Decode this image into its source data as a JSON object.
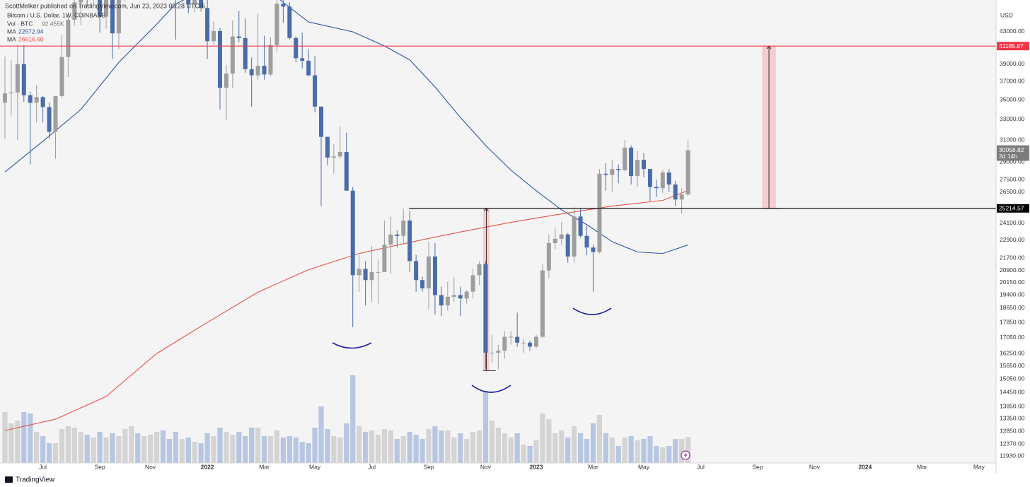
{
  "header": "ScottMelker published on TradingView.com, Jun 23, 2023 05:28 UTC-5",
  "footer": "TradingView",
  "chart_data": {
    "type": "candlestick",
    "symbol": "Bitcoin / U.S. Dollar, 1W, COINBASE",
    "currency": "USD",
    "log_scale": true,
    "grid": false,
    "up_color": "#9e9e9e",
    "down_color": "#4a6ca8",
    "volume_up_color": "#d4d4d4",
    "volume_down_color": "#b7c6e2",
    "volume_name": "Vol · BTC",
    "volume_label": "92.455K",
    "countdown": "2d 14h",
    "xlim": [
      -0.78,
      156.7
    ],
    "xticks": [
      {
        "value": 6,
        "label": "Jul"
      },
      {
        "value": 15,
        "label": "Sep"
      },
      {
        "value": 23,
        "label": "Nov"
      },
      {
        "value": 32,
        "label": "2022"
      },
      {
        "value": 41,
        "label": "Mar"
      },
      {
        "value": 49,
        "label": "May"
      },
      {
        "value": 58,
        "label": "Jul"
      },
      {
        "value": 67,
        "label": "Sep"
      },
      {
        "value": 76,
        "label": "Nov"
      },
      {
        "value": 84,
        "label": "2023"
      },
      {
        "value": 93,
        "label": "Mar"
      },
      {
        "value": 101,
        "label": "May"
      },
      {
        "value": 110,
        "label": "Jul"
      },
      {
        "value": 119,
        "label": "Sep"
      },
      {
        "value": 128,
        "label": "Nov"
      },
      {
        "value": 136,
        "label": "2024"
      },
      {
        "value": 145,
        "label": "Mar"
      },
      {
        "value": 154,
        "label": "May"
      }
    ],
    "ylim": [
      11678,
      47340
    ],
    "yticks": [
      {
        "value": 43000,
        "label": "43000.00"
      },
      {
        "value": 39000,
        "label": "39000.00"
      },
      {
        "value": 37000,
        "label": "37000.00"
      },
      {
        "value": 35000,
        "label": "35000.00"
      },
      {
        "value": 33000,
        "label": "33000.00"
      },
      {
        "value": 31000,
        "label": "31000.00"
      },
      {
        "value": 29000,
        "label": "29000.00"
      },
      {
        "value": 27500,
        "label": "27500.00"
      },
      {
        "value": 26500,
        "label": "26500.00"
      },
      {
        "value": 24100,
        "label": "24100.00"
      },
      {
        "value": 22900,
        "label": "22900.00"
      },
      {
        "value": 21700,
        "label": "21700.00"
      },
      {
        "value": 20900,
        "label": "20900.00"
      },
      {
        "value": 20150,
        "label": "20150.00"
      },
      {
        "value": 19400,
        "label": "19400.00"
      },
      {
        "value": 18650,
        "label": "18650.00"
      },
      {
        "value": 17850,
        "label": "17850.00"
      },
      {
        "value": 17050,
        "label": "17050.00"
      },
      {
        "value": 16250,
        "label": "16250.00"
      },
      {
        "value": 15650,
        "label": "15650.00"
      },
      {
        "value": 15050,
        "label": "15050.00"
      },
      {
        "value": 14450,
        "label": "14450.00"
      },
      {
        "value": 13850,
        "label": "13850.00"
      },
      {
        "value": 13350,
        "label": "13350.00"
      },
      {
        "value": 12850,
        "label": "12850.00"
      },
      {
        "value": 12370,
        "label": "12370.00"
      },
      {
        "value": 11930,
        "label": "11930.00"
      }
    ],
    "volume_ylim": [
      0,
      400000
    ],
    "x": [
      0,
      1,
      2,
      3,
      4,
      5,
      6,
      7,
      8,
      9,
      10,
      11,
      12,
      13,
      14,
      15,
      16,
      17,
      18,
      19,
      20,
      21,
      22,
      23,
      24,
      25,
      26,
      27,
      28,
      29,
      30,
      31,
      32,
      33,
      34,
      35,
      36,
      37,
      38,
      39,
      40,
      41,
      42,
      43,
      44,
      45,
      46,
      47,
      48,
      49,
      50,
      51,
      52,
      53,
      54,
      55,
      56,
      57,
      58,
      59,
      60,
      61,
      62,
      63,
      64,
      65,
      66,
      67,
      68,
      69,
      70,
      71,
      72,
      73,
      74,
      75,
      76,
      77,
      78,
      79,
      80,
      81,
      82,
      83,
      84,
      85,
      86,
      87,
      88,
      89,
      90,
      91,
      92,
      93,
      94,
      95,
      96,
      97,
      98,
      99,
      100,
      101,
      102,
      103,
      104,
      105,
      106,
      107,
      108
    ],
    "open": [
      34700,
      35700,
      35800,
      39000,
      35500,
      34700,
      35300,
      34250,
      31780,
      35400,
      39850,
      44600,
      47000,
      49300,
      48900,
      51800,
      45000,
      48300,
      42800,
      48200,
      55000,
      61500,
      61300,
      61800,
      63200,
      65500,
      58600,
      57300,
      49400,
      50100,
      46700,
      50800,
      46200,
      41800,
      43100,
      36300,
      37900,
      42400,
      42200,
      38400,
      37700,
      38800,
      37800,
      41300,
      46800,
      46400,
      42200,
      39700,
      39400,
      37700,
      34300,
      31300,
      29400,
      29500,
      29900,
      26600,
      20600,
      21000,
      20300,
      20800,
      20800,
      22600,
      23300,
      23200,
      24300,
      21500,
      20300,
      19800,
      21800,
      19400,
      18800,
      19300,
      19400,
      19200,
      19600,
      20600,
      21300,
      16300,
      16300,
      16400,
      17100,
      17100,
      16800,
      16800,
      16600,
      17100,
      20900,
      22700,
      23000,
      23300,
      21800,
      24600,
      23200,
      22400,
      22100,
      28000,
      27900,
      28400,
      28300,
      30300,
      27800,
      29200,
      28400,
      26900,
      26800,
      28100,
      27100,
      25900,
      26300
    ],
    "high": [
      39900,
      39500,
      41300,
      41300,
      35900,
      36600,
      35400,
      34700,
      35400,
      42600,
      45300,
      48100,
      50500,
      50000,
      52900,
      52900,
      48800,
      48300,
      48500,
      56500,
      62000,
      67000,
      63000,
      64300,
      69000,
      66300,
      59300,
      59200,
      51900,
      50600,
      51900,
      52000,
      47500,
      44400,
      43500,
      38900,
      44500,
      45800,
      44800,
      39800,
      45400,
      42500,
      42300,
      47500,
      48200,
      47000,
      42400,
      42900,
      40800,
      40000,
      34300,
      31300,
      30600,
      32300,
      31700,
      26900,
      21900,
      21500,
      22500,
      21600,
      24300,
      24600,
      23600,
      25200,
      25000,
      21900,
      20500,
      22800,
      22700,
      19900,
      20200,
      20500,
      19900,
      19700,
      21000,
      21500,
      21500,
      17200,
      16700,
      17400,
      17400,
      18400,
      17000,
      16900,
      17200,
      21300,
      23300,
      23800,
      24200,
      23400,
      25300,
      25200,
      23900,
      22600,
      28400,
      28900,
      29200,
      28800,
      31000,
      30500,
      30000,
      29800,
      28400,
      27500,
      28300,
      28400,
      27400,
      26800,
      31000
    ],
    "low": [
      31100,
      33400,
      31000,
      34800,
      28800,
      32700,
      32700,
      31100,
      29300,
      35200,
      37500,
      43800,
      43900,
      46400,
      46600,
      42900,
      43400,
      39600,
      40800,
      47200,
      53900,
      59600,
      57800,
      59400,
      62300,
      55600,
      53600,
      42000,
      46800,
      45500,
      45600,
      45700,
      39600,
      41300,
      34000,
      32900,
      36300,
      41700,
      38000,
      34300,
      37200,
      37200,
      37600,
      40500,
      44200,
      42000,
      39200,
      38500,
      37600,
      33700,
      25400,
      28700,
      28000,
      29300,
      26600,
      17600,
      19600,
      18800,
      19000,
      18900,
      20800,
      20700,
      22400,
      22700,
      20800,
      19600,
      19600,
      18600,
      18300,
      18200,
      18500,
      19000,
      18200,
      18900,
      19200,
      20000,
      15500,
      15800,
      15500,
      16000,
      16700,
      16600,
      16300,
      16400,
      16500,
      17000,
      20400,
      22300,
      22600,
      21400,
      21400,
      23100,
      21900,
      19600,
      22000,
      26600,
      26500,
      27200,
      28200,
      27100,
      26900,
      27700,
      25800,
      26100,
      26400,
      26500,
      25400,
      24800,
      26200
    ],
    "close": [
      35700,
      35800,
      39000,
      35500,
      34700,
      35300,
      34250,
      31780,
      35400,
      39850,
      44600,
      47000,
      49300,
      48900,
      51800,
      45000,
      48300,
      42800,
      48200,
      55000,
      61500,
      61300,
      61800,
      63200,
      65500,
      58600,
      57300,
      49400,
      50100,
      46700,
      50800,
      46200,
      41800,
      43100,
      36300,
      37900,
      42400,
      42200,
      38400,
      37700,
      38800,
      37800,
      41300,
      46800,
      46400,
      42200,
      39700,
      39400,
      37700,
      34300,
      31300,
      29400,
      29500,
      29900,
      26600,
      20600,
      21000,
      20300,
      20800,
      20800,
      22600,
      23300,
      23200,
      24300,
      21500,
      20300,
      19800,
      21800,
      19400,
      18800,
      19300,
      19400,
      19200,
      19600,
      20600,
      21300,
      16300,
      16300,
      16400,
      17100,
      17100,
      16800,
      16800,
      16600,
      17100,
      20900,
      22700,
      23000,
      23300,
      21800,
      24600,
      23200,
      22400,
      22100,
      28000,
      27900,
      28400,
      28300,
      30300,
      27800,
      29200,
      28400,
      26900,
      26800,
      28100,
      27100,
      25900,
      26300,
      30058.82
    ],
    "volume": [
      180000,
      140000,
      150000,
      180000,
      175000,
      110000,
      95000,
      70000,
      70000,
      120000,
      130000,
      125000,
      110000,
      100000,
      90000,
      110000,
      90000,
      105000,
      95000,
      120000,
      130000,
      105000,
      95000,
      100000,
      110000,
      115000,
      85000,
      110000,
      85000,
      90000,
      75000,
      70000,
      105000,
      95000,
      125000,
      110000,
      100000,
      110000,
      95000,
      125000,
      125000,
      95000,
      95000,
      115000,
      90000,
      95000,
      90000,
      75000,
      70000,
      125000,
      200000,
      120000,
      95000,
      90000,
      140000,
      311000,
      130000,
      110000,
      115000,
      100000,
      120000,
      115000,
      85000,
      95000,
      110000,
      100000,
      85000,
      120000,
      130000,
      115000,
      115000,
      90000,
      105000,
      85000,
      110000,
      115000,
      255000,
      150000,
      125000,
      105000,
      90000,
      105000,
      65000,
      60000,
      80000,
      175000,
      155000,
      105000,
      115000,
      90000,
      130000,
      105000,
      85000,
      140000,
      170000,
      105000,
      90000,
      60000,
      90000,
      95000,
      80000,
      85000,
      95000,
      60000,
      55000,
      60000,
      85000,
      85000,
      92455
    ],
    "ma": [
      {
        "name": "MA",
        "color": "#2a55a6",
        "x": [
          0,
          6,
          12,
          18,
          24,
          27,
          32,
          40,
          44,
          48,
          55,
          60,
          64,
          68,
          72,
          76,
          80,
          84,
          88,
          92,
          96,
          100,
          104,
          108
        ],
        "values": [
          28140,
          30890,
          34000,
          39200,
          44000,
          46800,
          49000,
          50000,
          47000,
          44300,
          43000,
          41200,
          39500,
          36400,
          33200,
          30500,
          28300,
          26600,
          25100,
          24000,
          22800,
          22100,
          22000,
          22572.94
        ]
      },
      {
        "name": "MA",
        "color": "#e5534b",
        "x": [
          0,
          8,
          16,
          24,
          32,
          40,
          48,
          56,
          64,
          72,
          80,
          88,
          96,
          104,
          108
        ],
        "values": [
          12880,
          13330,
          14280,
          16260,
          17860,
          19570,
          20950,
          22000,
          22750,
          23480,
          24170,
          24800,
          25390,
          25830,
          26616.6
        ],
        "value_labels": [
          null,
          null,
          null,
          null,
          null,
          null,
          null,
          null,
          null,
          null,
          null,
          null,
          null,
          null,
          "26616.60"
        ]
      }
    ],
    "hlines": [
      {
        "value": 41185.87,
        "color": "#f23645",
        "x_start": -0.78
      },
      {
        "value": 25214.57,
        "color": "#000000",
        "x_start": 63.9
      }
    ],
    "measures": [
      {
        "x0": 75.6,
        "x1": 76.6,
        "low": 15437,
        "high": 25214.57
      },
      {
        "x0": 119.7,
        "x1": 121.9,
        "low": 25214.57,
        "high": 41185.87
      }
    ]
  }
}
